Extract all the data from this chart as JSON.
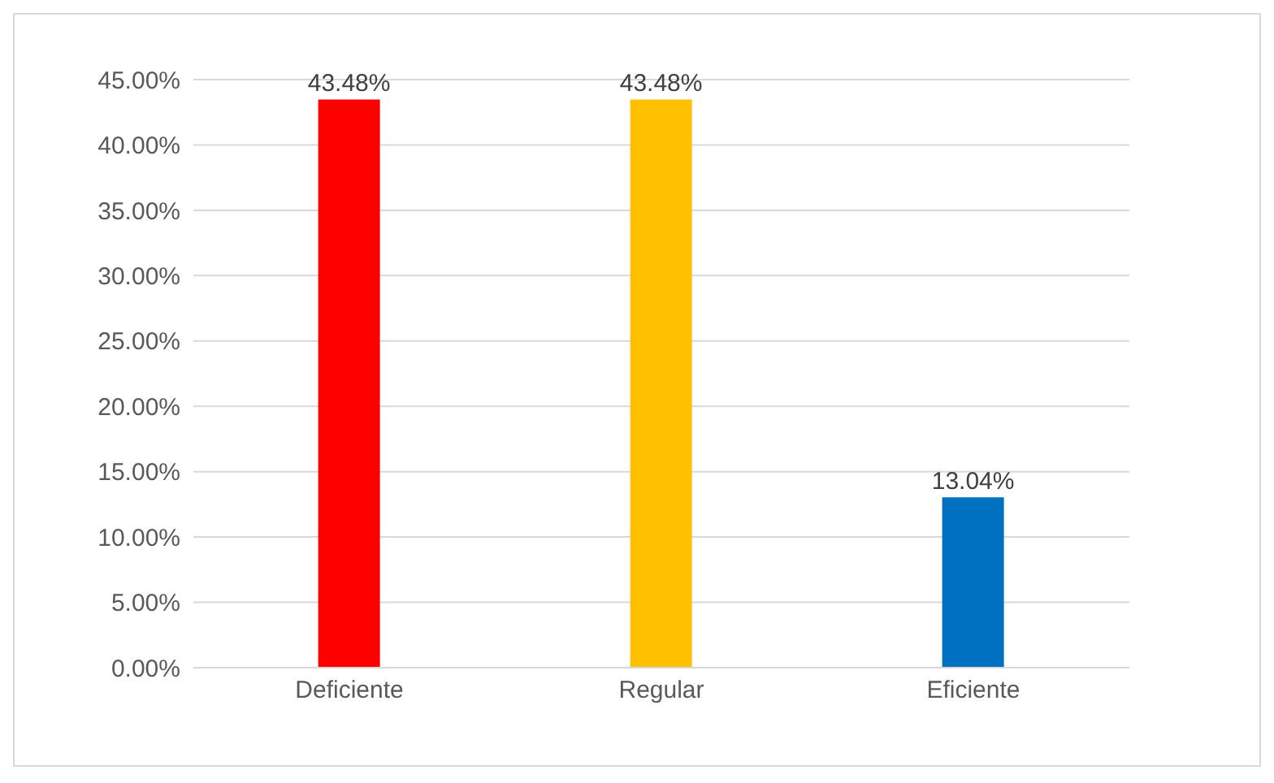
{
  "chart_data": {
    "type": "bar",
    "categories": [
      "Deficiente",
      "Regular",
      "Eficiente"
    ],
    "values": [
      43.48,
      43.48,
      13.04
    ],
    "colors": [
      "#ff0000",
      "#ffc000",
      "#0070c0"
    ],
    "value_labels": [
      "43.48%",
      "43.48%",
      "13.04%"
    ],
    "ylim": [
      0,
      45
    ],
    "yticks": [
      {
        "value": 0,
        "label": "0.00%"
      },
      {
        "value": 5,
        "label": "5.00%"
      },
      {
        "value": 10,
        "label": "10.00%"
      },
      {
        "value": 15,
        "label": "15.00%"
      },
      {
        "value": 20,
        "label": "20.00%"
      },
      {
        "value": 25,
        "label": "25.00%"
      },
      {
        "value": 30,
        "label": "30.00%"
      },
      {
        "value": 35,
        "label": "35.00%"
      },
      {
        "value": 40,
        "label": "40.00%"
      },
      {
        "value": 45,
        "label": "45.00%"
      }
    ],
    "grid": "y"
  }
}
